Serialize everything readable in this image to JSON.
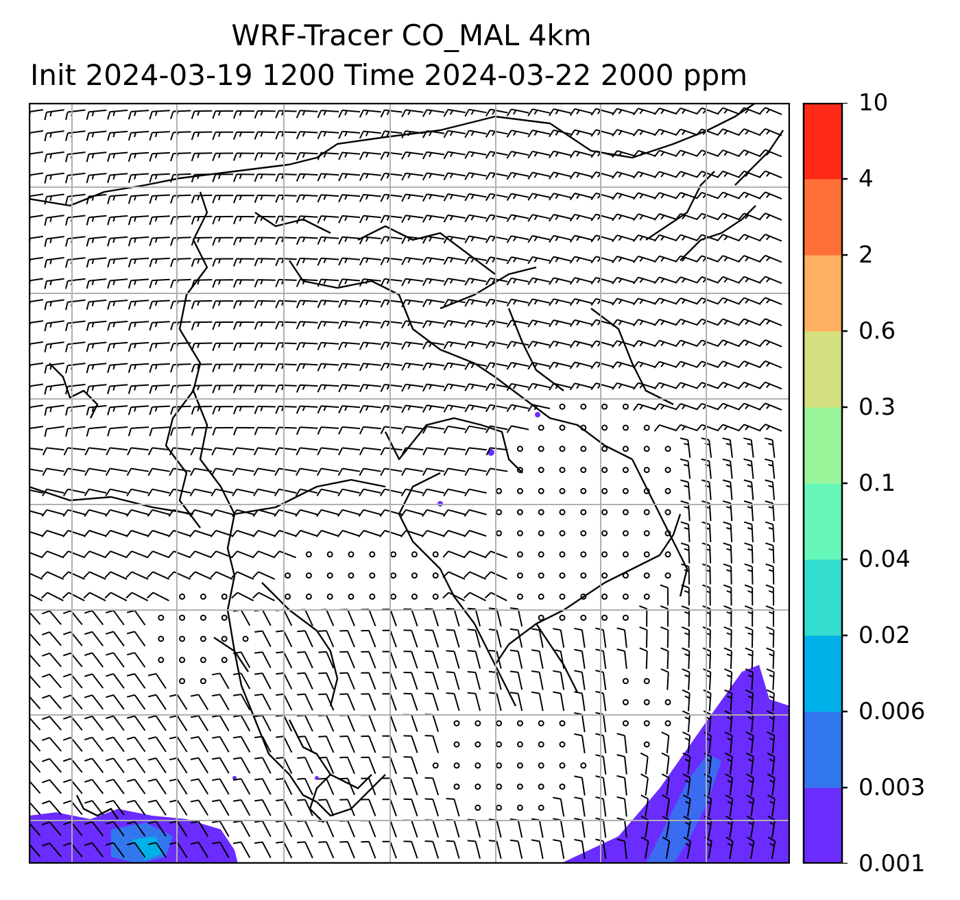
{
  "title": {
    "line1": "WRF-Tracer CO_MAL 4km",
    "line2": "Init 2024-03-19 1200 Time 2024-03-22 2000 ppm"
  },
  "colorbar": {
    "levels": [
      "0.001",
      "0.003",
      "0.006",
      "0.02",
      "0.04",
      "0.1",
      "0.3",
      "0.6",
      "2",
      "4",
      "10"
    ],
    "colors": [
      "#6a2cff",
      "#3377ee",
      "#00b0e8",
      "#33ddd0",
      "#66f7b8",
      "#99f59a",
      "#d4e080",
      "#fdb060",
      "#ff7038",
      "#ff2a18"
    ]
  },
  "map": {
    "gridlines": "on",
    "plume_color": "#6a2cff",
    "inner_color": "#3377ee",
    "wind_barbs": "on",
    "calm_markers": "circles"
  }
}
